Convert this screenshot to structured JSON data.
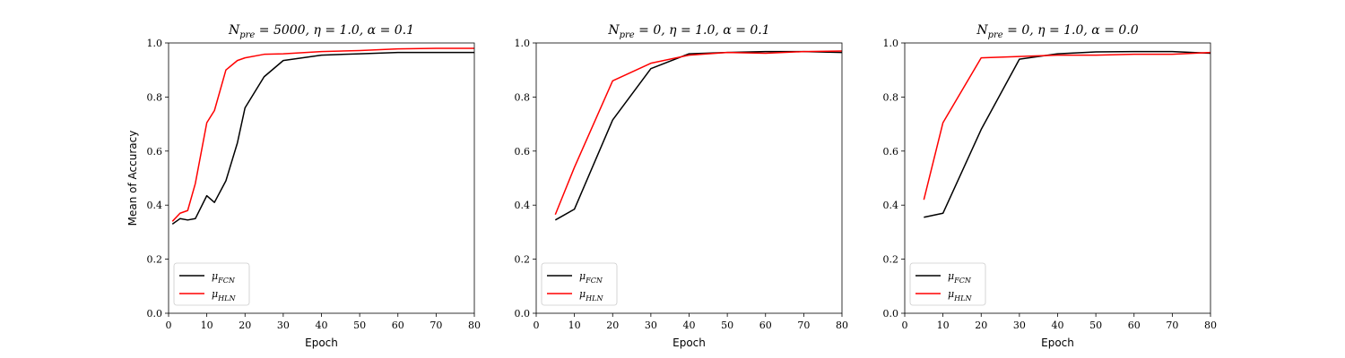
{
  "chart_data": [
    {
      "type": "line",
      "title": "N_pre = 5000, η = 1.0, α = 0.1",
      "xlabel": "Epoch",
      "ylabel": "Mean of Accuracy",
      "xlim": [
        0,
        80
      ],
      "ylim": [
        0,
        1.0
      ],
      "xticks": [
        "0",
        "10",
        "20",
        "30",
        "40",
        "50",
        "60",
        "70",
        "80"
      ],
      "yticks": [
        "0.0",
        "0.2",
        "0.4",
        "0.6",
        "0.8",
        "1.0"
      ],
      "grid": false,
      "legend": "lower-left",
      "series": [
        {
          "name": "μ_FCN",
          "color": "#000000",
          "x": [
            1,
            3,
            5,
            7,
            10,
            12,
            15,
            18,
            20,
            25,
            30,
            40,
            50,
            60,
            70,
            80
          ],
          "y": [
            0.33,
            0.35,
            0.345,
            0.35,
            0.435,
            0.41,
            0.49,
            0.63,
            0.76,
            0.875,
            0.935,
            0.955,
            0.96,
            0.965,
            0.965,
            0.965
          ]
        },
        {
          "name": "μ_HLN",
          "color": "#ff0000",
          "x": [
            1,
            3,
            5,
            7,
            10,
            12,
            15,
            18,
            20,
            25,
            30,
            40,
            50,
            60,
            70,
            80
          ],
          "y": [
            0.34,
            0.37,
            0.38,
            0.48,
            0.705,
            0.75,
            0.9,
            0.935,
            0.945,
            0.958,
            0.96,
            0.968,
            0.972,
            0.978,
            0.98,
            0.98
          ]
        }
      ]
    },
    {
      "type": "line",
      "title": "N_pre = 0, η = 1.0, α = 0.1",
      "xlabel": "Epoch",
      "ylabel": "",
      "xlim": [
        0,
        80
      ],
      "ylim": [
        0,
        1.0
      ],
      "xticks": [
        "0",
        "10",
        "20",
        "30",
        "40",
        "50",
        "60",
        "70",
        "80"
      ],
      "yticks": [
        "0.0",
        "0.2",
        "0.4",
        "0.6",
        "0.8",
        "1.0"
      ],
      "grid": false,
      "legend": "lower-left",
      "series": [
        {
          "name": "μ_FCN",
          "color": "#000000",
          "x": [
            5,
            10,
            20,
            30,
            40,
            50,
            60,
            70,
            80
          ],
          "y": [
            0.345,
            0.385,
            0.715,
            0.905,
            0.96,
            0.965,
            0.968,
            0.968,
            0.965
          ]
        },
        {
          "name": "μ_HLN",
          "color": "#ff0000",
          "x": [
            5,
            10,
            20,
            30,
            40,
            50,
            60,
            70,
            80
          ],
          "y": [
            0.365,
            0.54,
            0.86,
            0.925,
            0.955,
            0.965,
            0.962,
            0.968,
            0.97
          ]
        }
      ]
    },
    {
      "type": "line",
      "title": "N_pre = 0, η = 1.0, α = 0.0",
      "xlabel": "Epoch",
      "ylabel": "",
      "xlim": [
        0,
        80
      ],
      "ylim": [
        0,
        1.0
      ],
      "xticks": [
        "0",
        "10",
        "20",
        "30",
        "40",
        "50",
        "60",
        "70",
        "80"
      ],
      "yticks": [
        "0.0",
        "0.2",
        "0.4",
        "0.6",
        "0.8",
        "1.0"
      ],
      "grid": false,
      "legend": "lower-left",
      "series": [
        {
          "name": "μ_FCN",
          "color": "#000000",
          "x": [
            5,
            10,
            20,
            30,
            40,
            50,
            60,
            70,
            80
          ],
          "y": [
            0.355,
            0.37,
            0.68,
            0.94,
            0.96,
            0.967,
            0.968,
            0.968,
            0.962
          ]
        },
        {
          "name": "μ_HLN",
          "color": "#ff0000",
          "x": [
            5,
            10,
            20,
            30,
            40,
            50,
            60,
            70,
            80
          ],
          "y": [
            0.42,
            0.705,
            0.945,
            0.95,
            0.955,
            0.955,
            0.958,
            0.958,
            0.965
          ]
        }
      ]
    }
  ]
}
